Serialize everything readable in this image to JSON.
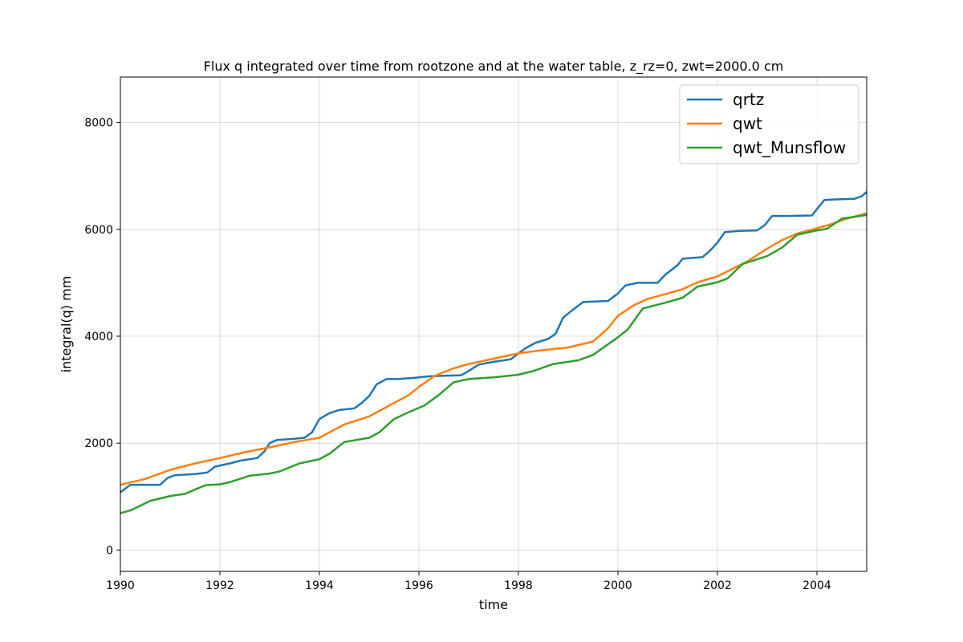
{
  "chart_data": {
    "type": "line",
    "title": "Flux q integrated over time from rootzone and at the water table, z_rz=0, zwt=2000.0 cm",
    "xlabel": "time",
    "ylabel": "integral(q) mm",
    "xlim": [
      1990,
      2005
    ],
    "ylim": [
      -400,
      8850
    ],
    "x_ticks": [
      1990,
      1992,
      1994,
      1996,
      1998,
      2000,
      2002,
      2004
    ],
    "x_tick_labels": [
      "1990",
      "1992",
      "1994",
      "1996",
      "1998",
      "2000",
      "2002",
      "2004"
    ],
    "y_ticks": [
      0,
      2000,
      4000,
      6000,
      8000
    ],
    "y_tick_labels": [
      "0",
      "2000",
      "4000",
      "6000",
      "8000"
    ],
    "grid": true,
    "legend_position": "top-right",
    "series": [
      {
        "name": "qrtz",
        "color": "#1f77b4",
        "x": [
          1990.0,
          1990.2,
          1990.35,
          1990.8,
          1990.95,
          1991.1,
          1991.5,
          1991.75,
          1991.9,
          1992.2,
          1992.4,
          1992.6,
          1992.75,
          1992.9,
          1993.0,
          1993.15,
          1993.5,
          1993.7,
          1993.85,
          1994.0,
          1994.2,
          1994.4,
          1994.7,
          1994.85,
          1995.0,
          1995.15,
          1995.35,
          1995.6,
          1995.9,
          1996.0,
          1996.2,
          1996.5,
          1996.85,
          1997.0,
          1997.2,
          1997.5,
          1997.85,
          1998.0,
          1998.15,
          1998.35,
          1998.6,
          1998.75,
          1998.9,
          1999.1,
          1999.3,
          1999.8,
          2000.0,
          2000.15,
          2000.4,
          2000.8,
          2000.95,
          2001.2,
          2001.3,
          2001.7,
          2001.85,
          2002.0,
          2002.15,
          2002.45,
          2002.8,
          2002.95,
          2003.1,
          2003.4,
          2003.9,
          2004.0,
          2004.15,
          2004.35,
          2004.75,
          2004.9,
          2005.0
        ],
        "values": [
          1080,
          1220,
          1220,
          1220,
          1350,
          1400,
          1420,
          1450,
          1560,
          1620,
          1670,
          1700,
          1720,
          1850,
          2000,
          2060,
          2080,
          2100,
          2200,
          2450,
          2560,
          2620,
          2650,
          2750,
          2880,
          3100,
          3200,
          3200,
          3220,
          3230,
          3250,
          3260,
          3270,
          3350,
          3470,
          3520,
          3570,
          3680,
          3780,
          3880,
          3950,
          4050,
          4350,
          4500,
          4640,
          4660,
          4800,
          4950,
          5000,
          5000,
          5150,
          5330,
          5450,
          5480,
          5600,
          5750,
          5950,
          5970,
          5980,
          6080,
          6250,
          6250,
          6260,
          6380,
          6550,
          6560,
          6570,
          6620,
          6700
        ]
      },
      {
        "name": "qwt",
        "color": "#ff7f0e",
        "x": [
          1990.0,
          1990.5,
          1991.0,
          1991.5,
          1992.0,
          1992.5,
          1993.0,
          1993.5,
          1994.0,
          1994.5,
          1995.0,
          1995.5,
          1995.8,
          1996.0,
          1996.3,
          1996.7,
          1997.0,
          1997.5,
          1998.0,
          1998.5,
          1999.0,
          1999.5,
          1999.8,
          2000.0,
          2000.3,
          2000.6,
          2001.0,
          2001.3,
          2001.6,
          2002.0,
          2002.3,
          2002.6,
          2003.0,
          2003.3,
          2003.6,
          2004.0,
          2004.3,
          2004.6,
          2005.0
        ],
        "values": [
          1220,
          1330,
          1500,
          1620,
          1720,
          1830,
          1920,
          2020,
          2100,
          2350,
          2500,
          2750,
          2900,
          3050,
          3250,
          3400,
          3480,
          3580,
          3680,
          3740,
          3790,
          3900,
          4150,
          4380,
          4570,
          4700,
          4800,
          4880,
          5010,
          5120,
          5260,
          5400,
          5640,
          5800,
          5920,
          6020,
          6100,
          6200,
          6300
        ]
      },
      {
        "name": "qwt_Munsflow",
        "color": "#2ca02c",
        "x": [
          1990.0,
          1990.2,
          1990.6,
          1991.0,
          1991.3,
          1991.7,
          1992.0,
          1992.2,
          1992.6,
          1993.0,
          1993.2,
          1993.6,
          1994.0,
          1994.2,
          1994.5,
          1995.0,
          1995.2,
          1995.5,
          1995.8,
          1996.1,
          1996.4,
          1996.7,
          1997.0,
          1997.5,
          1998.0,
          1998.3,
          1998.7,
          1999.2,
          1999.5,
          1999.8,
          2000.0,
          2000.2,
          2000.5,
          2001.0,
          2001.3,
          2001.6,
          2002.0,
          2002.2,
          2002.5,
          2003.0,
          2003.3,
          2003.6,
          2004.0,
          2004.2,
          2004.5,
          2005.0
        ],
        "values": [
          690,
          740,
          920,
          1010,
          1050,
          1210,
          1230,
          1270,
          1390,
          1430,
          1470,
          1620,
          1700,
          1800,
          2020,
          2100,
          2200,
          2450,
          2580,
          2700,
          2900,
          3140,
          3200,
          3230,
          3280,
          3350,
          3480,
          3550,
          3650,
          3850,
          3980,
          4130,
          4520,
          4640,
          4720,
          4930,
          5010,
          5080,
          5350,
          5500,
          5660,
          5900,
          5980,
          6010,
          6200,
          6270
        ]
      }
    ]
  }
}
